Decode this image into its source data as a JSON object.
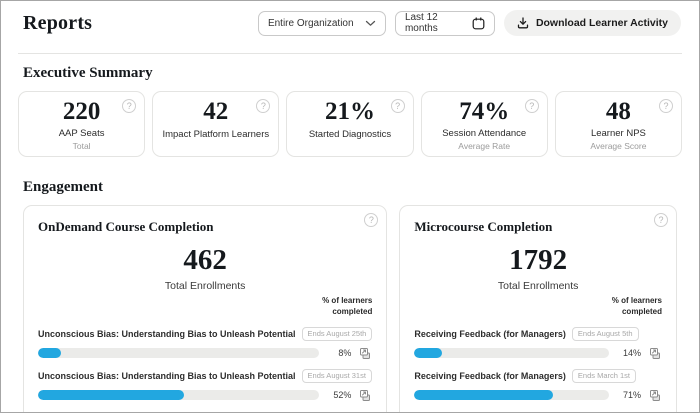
{
  "header": {
    "title": "Reports",
    "org_filter": "Entire Organization",
    "date_filter": "Last 12 months",
    "download_label": "Download Learner Activity"
  },
  "executive_summary": {
    "title": "Executive Summary",
    "stats": [
      {
        "value": "220",
        "label": "AAP Seats",
        "sublabel": "Total"
      },
      {
        "value": "42",
        "label": "Impact Platform Learners",
        "sublabel": ""
      },
      {
        "value": "21%",
        "label": "Started Diagnostics",
        "sublabel": ""
      },
      {
        "value": "74%",
        "label": "Session Attendance",
        "sublabel": "Average Rate"
      },
      {
        "value": "48",
        "label": "Learner NPS",
        "sublabel": "Average Score"
      }
    ]
  },
  "engagement": {
    "title": "Engagement",
    "cards": [
      {
        "title": "OnDemand Course Completion",
        "total_value": "462",
        "total_label": "Total Enrollments",
        "column_note": "% of learners completed",
        "rows": [
          {
            "name": "Unconscious Bias: Understanding Bias to Unleash Potential",
            "badge": "Ends August 25th",
            "percent": "8%",
            "progress": 8
          },
          {
            "name": "Unconscious Bias: Understanding Bias to Unleash Potential",
            "badge": "Ends August 31st",
            "percent": "52%",
            "progress": 52
          }
        ]
      },
      {
        "title": "Microcourse Completion",
        "total_value": "1792",
        "total_label": "Total Enrollments",
        "column_note": "% of learners completed",
        "rows": [
          {
            "name": "Receiving Feedback (for Managers)",
            "badge": "Ends August 5th",
            "percent": "14%",
            "progress": 14
          },
          {
            "name": "Receiving Feedback (for Managers)",
            "badge": "Ends March 1st",
            "percent": "71%",
            "progress": 71
          }
        ]
      }
    ]
  },
  "icons": {
    "help": "?"
  },
  "colors": {
    "accent_blue": "#22a7e0",
    "track_gray": "#ebebe9",
    "card_border": "#e4e4e2"
  }
}
